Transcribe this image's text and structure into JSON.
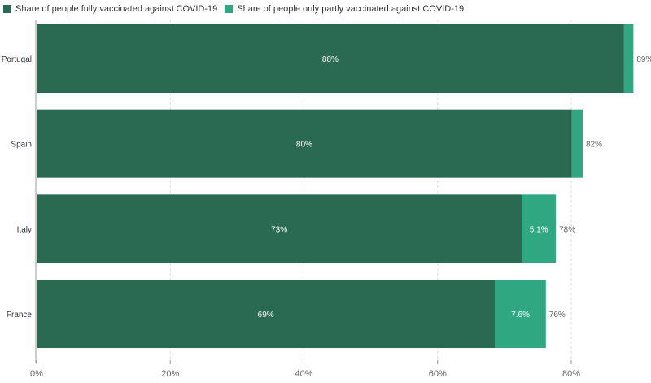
{
  "chart_data": {
    "type": "bar",
    "orientation": "horizontal",
    "stacked": true,
    "categories": [
      "Portugal",
      "Spain",
      "Italy",
      "France"
    ],
    "series": [
      {
        "name": "Share of people fully vaccinated against COVID-19",
        "color": "#2b6a52",
        "values": [
          87.9,
          80.1,
          72.6,
          68.6
        ],
        "labels": [
          "88%",
          "80%",
          "73%",
          "69%"
        ]
      },
      {
        "name": "Share of people only partly vaccinated against COVID-19",
        "color": "#2fa882",
        "values": [
          1.4,
          1.6,
          5.1,
          7.6
        ],
        "labels": [
          "",
          "",
          "5.1%",
          "7.6%"
        ]
      }
    ],
    "totals": [
      "89%",
      "82%",
      "78%",
      "76%"
    ],
    "xlim": [
      0,
      91
    ],
    "xticks": [
      0,
      20,
      40,
      60,
      80
    ],
    "xtick_labels": [
      "0%",
      "20%",
      "40%",
      "60%",
      "80%"
    ],
    "grid": true,
    "legend_position": "top-left"
  }
}
